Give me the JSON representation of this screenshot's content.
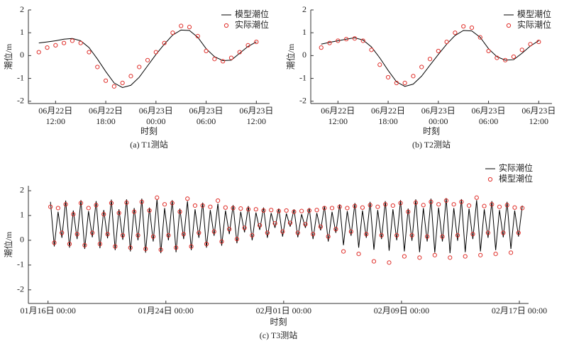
{
  "chart_data": [
    {
      "type": "line",
      "caption": "(a) T1测站",
      "xlabel": "时刻",
      "ylabel": "潮位/m",
      "legend": "upper right",
      "xlim": [
        "06月22日 08:45",
        "06月23日 13:35"
      ],
      "ylim": [
        -2.1,
        2
      ],
      "yticks": [
        -2,
        -1,
        0,
        1,
        2
      ],
      "xticks": [
        {
          "value": "06月22日 12:00",
          "label": "06月22日\n12:00"
        },
        {
          "value": "06月22日 18:00",
          "label": "06月22日\n18:00"
        },
        {
          "value": "06月23日 00:00",
          "label": "06月23日\n00:00"
        },
        {
          "value": "06月23日 06:00",
          "label": "06月23日\n06:00"
        },
        {
          "value": "06月23日 12:00",
          "label": "06月23日\n12:00"
        }
      ],
      "x": [
        "06月22日 10:00",
        "06月22日 11:00",
        "06月22日 12:00",
        "06月22日 13:00",
        "06月22日 14:00",
        "06月22日 15:00",
        "06月22日 16:00",
        "06月22日 17:00",
        "06月22日 18:00",
        "06月22日 19:00",
        "06月22日 20:00",
        "06月22日 21:00",
        "06月22日 22:00",
        "06月22日 23:00",
        "06月23日 00:00",
        "06月23日 01:00",
        "06月23日 02:00",
        "06月23日 03:00",
        "06月23日 04:00",
        "06月23日 05:00",
        "06月23日 06:00",
        "06月23日 07:00",
        "06月23日 08:00",
        "06月23日 09:00",
        "06月23日 10:00",
        "06月23日 11:00",
        "06月23日 12:00"
      ],
      "series": [
        {
          "name": "模型潮位",
          "type": "line",
          "color": "#000000",
          "values": [
            0.55,
            0.6,
            0.65,
            0.72,
            0.75,
            0.65,
            0.35,
            -0.15,
            -0.7,
            -1.2,
            -1.4,
            -1.3,
            -0.95,
            -0.45,
            0.05,
            0.5,
            0.9,
            1.12,
            1.1,
            0.8,
            0.3,
            -0.05,
            -0.22,
            -0.2,
            0.1,
            0.4,
            0.6
          ]
        },
        {
          "name": "实际潮位",
          "type": "scatter",
          "color": "#e0302b",
          "values": [
            0.15,
            0.35,
            0.45,
            0.55,
            0.65,
            0.55,
            0.15,
            -0.5,
            -1.1,
            -1.35,
            -1.2,
            -0.9,
            -0.5,
            -0.2,
            0.15,
            0.55,
            1.0,
            1.3,
            1.25,
            0.85,
            0.2,
            -0.15,
            -0.25,
            -0.1,
            0.15,
            0.45,
            0.6
          ]
        }
      ]
    },
    {
      "type": "line",
      "caption": "(b) T2测站",
      "xlabel": "时刻",
      "ylabel": "潮位/m",
      "legend": "upper right",
      "xlim": [
        "06月22日 08:45",
        "06月23日 13:35"
      ],
      "ylim": [
        -2.1,
        2
      ],
      "yticks": [
        -2,
        -1,
        0,
        1,
        2
      ],
      "xticks": [
        {
          "value": "06月22日 12:00",
          "label": "06月22日\n12:00"
        },
        {
          "value": "06月22日 18:00",
          "label": "06月22日\n18:00"
        },
        {
          "value": "06月23日 00:00",
          "label": "06月23日\n00:00"
        },
        {
          "value": "06月23日 06:00",
          "label": "06月23日\n06:00"
        },
        {
          "value": "06月23日 12:00",
          "label": "06月23日\n12:00"
        }
      ],
      "x": [
        "06月22日 10:00",
        "06月22日 11:00",
        "06月22日 12:00",
        "06月22日 13:00",
        "06月22日 14:00",
        "06月22日 15:00",
        "06月22日 16:00",
        "06月22日 17:00",
        "06月22日 18:00",
        "06月22日 19:00",
        "06月22日 20:00",
        "06月22日 21:00",
        "06月22日 22:00",
        "06月22日 23:00",
        "06月23日 00:00",
        "06月23日 01:00",
        "06月23日 02:00",
        "06月23日 03:00",
        "06月23日 04:00",
        "06月23日 05:00",
        "06月23日 06:00",
        "06月23日 07:00",
        "06月23日 08:00",
        "06月23日 09:00",
        "06月23日 10:00",
        "06月23日 11:00",
        "06月23日 12:00"
      ],
      "series": [
        {
          "name": "模型潮位",
          "type": "line",
          "color": "#000000",
          "values": [
            0.5,
            0.58,
            0.65,
            0.72,
            0.78,
            0.68,
            0.38,
            -0.1,
            -0.65,
            -1.15,
            -1.35,
            -1.25,
            -0.9,
            -0.42,
            0.05,
            0.5,
            0.88,
            1.1,
            1.08,
            0.8,
            0.3,
            -0.05,
            -0.2,
            -0.18,
            0.1,
            0.42,
            0.65
          ]
        },
        {
          "name": "实际潮位",
          "type": "scatter",
          "color": "#e0302b",
          "values": [
            0.35,
            0.55,
            0.65,
            0.72,
            0.75,
            0.65,
            0.25,
            -0.4,
            -0.95,
            -1.2,
            -1.2,
            -0.9,
            -0.5,
            -0.15,
            0.2,
            0.6,
            1.0,
            1.28,
            1.22,
            0.8,
            0.2,
            -0.1,
            -0.2,
            -0.05,
            0.25,
            0.5,
            0.6
          ]
        }
      ]
    },
    {
      "type": "line",
      "caption": "(c) T3测站",
      "xlabel": "时刻",
      "ylabel": "潮位/m",
      "legend": "upper right",
      "xlim": [
        "01月14日 16:00",
        "02月17日 15:00"
      ],
      "ylim": [
        -2.55,
        2.2
      ],
      "yticks": [
        -2,
        -1,
        0,
        1,
        2
      ],
      "xticks": [
        "01月16日 00:00",
        "01月24日 00:00",
        "02月01日 00:00",
        "02月09日 00:00",
        "02月17日 00:00"
      ],
      "x": [
        "01月16日 04:00",
        "01月16日 10:12",
        "01月16日 16:24",
        "01月16日 22:36",
        "01月17日 04:48",
        "01月17日 11:00",
        "01月17日 17:12",
        "01月17日 23:24",
        "01月18日 05:36",
        "01月18日 11:48",
        "01月18日 18:00",
        "01月19日 00:12",
        "01月19日 06:24",
        "01月19日 12:36",
        "01月19日 18:48",
        "01月20日 01:00",
        "01月20日 07:12",
        "01月20日 13:24",
        "01月20日 19:36",
        "01月21日 01:48",
        "01月21日 08:00",
        "01月21日 14:12",
        "01月21日 20:24",
        "01月22日 02:36",
        "01月22日 08:48",
        "01月22日 15:00",
        "01月22日 21:12",
        "01月23日 03:24",
        "01月23日 09:36",
        "01月23日 15:48",
        "01月23日 22:00",
        "01月24日 04:12",
        "01月24日 10:24",
        "01月24日 16:36",
        "01月24日 22:48",
        "01月25日 05:00",
        "01月25日 11:12",
        "01月25日 17:24",
        "01月25日 23:36",
        "01月26日 05:48",
        "01月26日 12:00",
        "01月26日 18:12",
        "01月27日 00:24",
        "01月27日 06:36",
        "01月27日 12:48",
        "01月27日 19:00",
        "01月28日 01:12",
        "01月28日 07:24",
        "01月28日 13:36",
        "01月28日 19:48",
        "01月29日 02:00",
        "01月29日 08:12",
        "01月29日 14:24",
        "01月29日 20:36",
        "01月30日 02:48",
        "01月30日 09:00",
        "01月30日 15:12",
        "01月30日 21:24",
        "01月31日 03:36",
        "01月31日 09:48",
        "01月31日 16:00",
        "01月31日 22:12",
        "02月01日 04:24",
        "02月01日 10:36",
        "02月01日 16:48",
        "02月01日 23:00",
        "02月02日 05:12",
        "02月02日 11:24",
        "02月02日 17:36",
        "02月02日 23:48",
        "02月03日 06:00",
        "02月03日 12:12",
        "02月03日 18:24",
        "02月04日 00:36",
        "02月04日 06:48",
        "02月04日 13:00",
        "02月04日 19:12",
        "02月05日 01:24",
        "02月05日 07:36",
        "02月05日 13:48",
        "02月05日 20:00",
        "02月06日 02:12",
        "02月06日 08:24",
        "02月06日 14:36",
        "02月06日 20:48",
        "02月07日 03:00",
        "02月07日 09:12",
        "02月07日 15:24",
        "02月07日 21:36",
        "02月08日 03:48",
        "02月08日 10:00",
        "02月08日 16:12",
        "02月08日 22:24",
        "02月09日 04:36",
        "02月09日 10:48",
        "02月09日 17:00",
        "02月09日 23:12",
        "02月10日 05:24",
        "02月10日 11:36",
        "02月10日 17:48",
        "02月11日 00:00",
        "02月11日 06:12",
        "02月11日 12:24",
        "02月11日 18:36",
        "02月12日 00:48",
        "02月12日 07:00",
        "02月12日 13:12",
        "02月12日 19:24",
        "02月13日 01:36",
        "02月13日 07:48",
        "02月13日 14:00",
        "02月13日 20:12",
        "02月14日 02:24",
        "02月14日 08:36",
        "02月14日 14:48",
        "02月14日 21:00",
        "02月15日 03:12",
        "02月15日 09:24",
        "02月15日 15:36",
        "02月15日 21:48",
        "02月16日 04:00",
        "02月16日 10:12",
        "02月16日 16:24",
        "02月16日 22:36",
        "02月17日 04:48"
      ],
      "series": [
        {
          "name": "实际潮位",
          "type": "line",
          "color": "#000000",
          "values": [
            1.55,
            -0.25,
            1.15,
            0.1,
            1.6,
            -0.3,
            1.2,
            0.05,
            1.62,
            -0.35,
            1.18,
            0.12,
            1.58,
            -0.32,
            1.22,
            0.08,
            1.64,
            -0.4,
            1.25,
            0.02,
            1.65,
            -0.45,
            1.3,
            0.0,
            1.68,
            -0.5,
            1.32,
            -0.05,
            1.66,
            -0.52,
            1.3,
            0.0,
            1.62,
            -0.48,
            1.28,
            0.05,
            1.58,
            -0.4,
            1.25,
            0.1,
            1.52,
            -0.3,
            1.22,
            0.18,
            1.48,
            -0.22,
            1.2,
            0.25,
            1.42,
            -0.12,
            1.15,
            0.32,
            1.38,
            0.0,
            1.12,
            0.42,
            1.32,
            0.1,
            1.1,
            0.5,
            1.28,
            0.15,
            1.08,
            0.55,
            1.25,
            0.12,
            1.05,
            0.5,
            1.3,
            0.05,
            1.1,
            0.4,
            1.38,
            -0.05,
            1.15,
            0.3,
            1.45,
            -0.2,
            1.18,
            0.18,
            1.5,
            -0.3,
            1.2,
            0.1,
            1.55,
            -0.38,
            1.22,
            0.05,
            1.58,
            -0.42,
            1.25,
            0.0,
            1.62,
            -0.45,
            1.28,
            -0.02,
            1.65,
            -0.48,
            1.3,
            -0.05,
            1.68,
            -0.5,
            1.32,
            -0.05,
            1.7,
            -0.52,
            1.3,
            -0.02,
            1.66,
            -0.48,
            1.28,
            0.05,
            1.62,
            -0.45,
            1.25,
            0.1,
            1.58,
            -0.4,
            1.22,
            0.12,
            1.55,
            -0.35,
            1.2,
            0.15,
            1.4
          ]
        },
        {
          "name": "模型潮位",
          "type": "scatter",
          "color": "#e0302b",
          "values": [
            1.35,
            -0.1,
            1.3,
            0.3,
            1.45,
            -0.15,
            1.05,
            0.25,
            1.5,
            -0.2,
            1.3,
            0.3,
            1.42,
            -0.15,
            1.05,
            0.25,
            1.5,
            -0.25,
            1.1,
            0.2,
            1.52,
            -0.3,
            1.15,
            0.2,
            1.55,
            -0.35,
            1.2,
            0.15,
            1.72,
            -0.38,
            1.45,
            0.2,
            1.5,
            -0.3,
            1.15,
            0.25,
            1.68,
            -0.25,
            1.4,
            0.3,
            1.4,
            -0.15,
            1.35,
            0.35,
            1.6,
            -0.05,
            1.32,
            0.45,
            1.3,
            0.05,
            1.28,
            0.5,
            1.25,
            0.2,
            1.25,
            0.6,
            1.2,
            0.3,
            1.22,
            0.68,
            1.18,
            0.35,
            1.2,
            0.7,
            1.15,
            0.3,
            1.18,
            0.65,
            1.2,
            0.25,
            1.22,
            0.55,
            1.3,
            0.15,
            1.3,
            0.45,
            1.35,
            -0.45,
            1.3,
            0.35,
            1.38,
            -0.55,
            1.32,
            0.25,
            1.42,
            -0.85,
            1.35,
            0.2,
            1.45,
            -0.9,
            1.4,
            0.2,
            1.5,
            -0.65,
            1.15,
            0.2,
            1.52,
            -0.7,
            1.42,
            0.15,
            1.55,
            -0.6,
            1.45,
            0.15,
            1.6,
            -0.7,
            1.45,
            0.2,
            1.55,
            -0.65,
            1.4,
            0.25,
            1.72,
            -0.6,
            1.38,
            0.3,
            1.45,
            -0.55,
            1.35,
            0.3,
            1.42,
            -0.5,
            1.32,
            0.3,
            1.3
          ]
        }
      ]
    }
  ]
}
